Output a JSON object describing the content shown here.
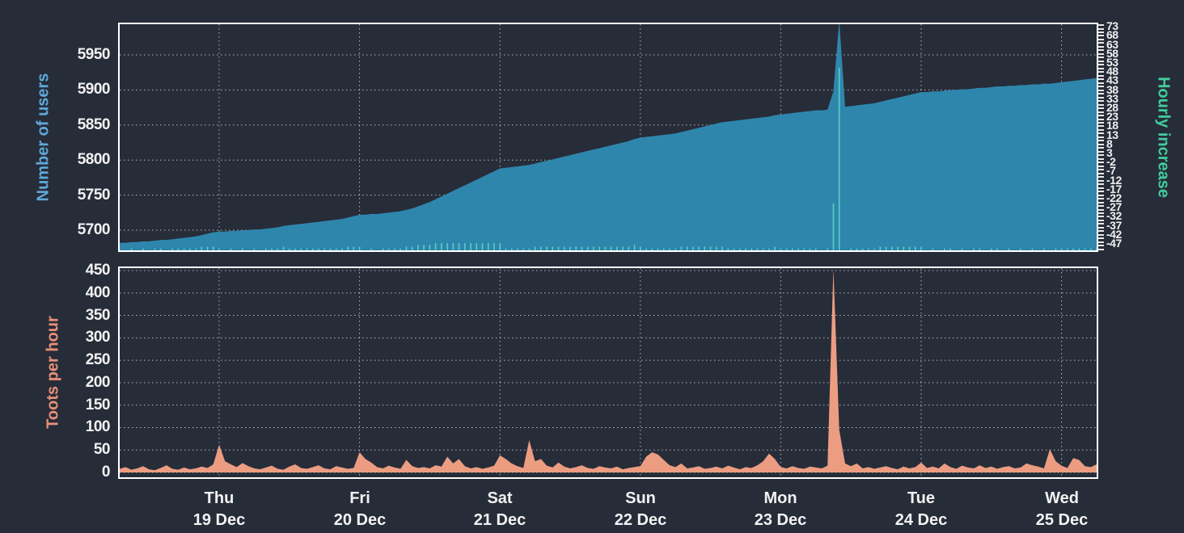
{
  "colors": {
    "background": "#272c39",
    "plot_border": "#ffffff",
    "grid": "rgba(255,255,255,0.65)",
    "users_fill": "#2f86ad",
    "hourly_line": "#5ecdc1",
    "toots_fill": "#ec9d81",
    "users_label": "#5fa8d8",
    "hourly_label": "#41ce9f",
    "toots_label": "#e89077",
    "tick_text": "#f2f2f2"
  },
  "x_axis": {
    "hours_total": 167,
    "day_ticks": [
      {
        "label": "Thu",
        "date": "19 Dec",
        "t": 17
      },
      {
        "label": "Fri",
        "date": "20 Dec",
        "t": 41
      },
      {
        "label": "Sat",
        "date": "21 Dec",
        "t": 65
      },
      {
        "label": "Sun",
        "date": "22 Dec",
        "t": 89
      },
      {
        "label": "Mon",
        "date": "23 Dec",
        "t": 113
      },
      {
        "label": "Tue",
        "date": "24 Dec",
        "t": 137
      },
      {
        "label": "Wed",
        "date": "25 Dec",
        "t": 161
      }
    ]
  },
  "chart_data": [
    {
      "type": "area",
      "name": "users-and-hourly-increase",
      "ylabel": "Number of users",
      "y2label": "Hourly increase",
      "yticks": [
        5950,
        5900,
        5850,
        5800,
        5750,
        5700
      ],
      "ylim": [
        5671,
        5994
      ],
      "y2lim": [
        -51,
        74
      ],
      "y2tick_labels": [
        73,
        68,
        63,
        58,
        53,
        48,
        43,
        38,
        33,
        28,
        23,
        18,
        13,
        8,
        3,
        -2,
        -7,
        -12,
        -17,
        -22,
        -27,
        -32,
        -37,
        -42,
        -47
      ],
      "y2tick_minor_step": 2,
      "grid": true,
      "series": [
        {
          "name": "Number of users",
          "values": [
            5682,
            5682,
            5683,
            5683,
            5684,
            5684,
            5685,
            5686,
            5686,
            5687,
            5688,
            5689,
            5690,
            5691,
            5693,
            5695,
            5697,
            5698,
            5698,
            5699,
            5699,
            5700,
            5700,
            5701,
            5701,
            5702,
            5703,
            5704,
            5706,
            5707,
            5708,
            5709,
            5710,
            5711,
            5712,
            5713,
            5714,
            5715,
            5716,
            5718,
            5720,
            5722,
            5722,
            5723,
            5723,
            5724,
            5725,
            5726,
            5727,
            5729,
            5731,
            5734,
            5737,
            5740,
            5744,
            5748,
            5752,
            5756,
            5760,
            5764,
            5768,
            5772,
            5776,
            5780,
            5784,
            5788,
            5789,
            5790,
            5791,
            5792,
            5793,
            5795,
            5797,
            5799,
            5801,
            5803,
            5805,
            5807,
            5809,
            5811,
            5813,
            5815,
            5817,
            5819,
            5821,
            5823,
            5825,
            5827,
            5830,
            5832,
            5833,
            5834,
            5835,
            5836,
            5837,
            5838,
            5840,
            5842,
            5844,
            5846,
            5848,
            5850,
            5852,
            5854,
            5855,
            5856,
            5857,
            5858,
            5859,
            5860,
            5861,
            5862,
            5864,
            5865,
            5866,
            5867,
            5868,
            5869,
            5870,
            5871,
            5871,
            5872,
            5898,
            5999,
            5876,
            5877,
            5878,
            5879,
            5880,
            5881,
            5883,
            5885,
            5887,
            5889,
            5891,
            5893,
            5895,
            5897,
            5897,
            5898,
            5898,
            5899,
            5900,
            5900,
            5901,
            5901,
            5902,
            5903,
            5903,
            5904,
            5905,
            5905,
            5906,
            5906,
            5907,
            5907,
            5908,
            5908,
            5909,
            5909,
            5910,
            5911,
            5912,
            5913,
            5914,
            5915,
            5916,
            5917
          ]
        },
        {
          "name": "Hourly increase",
          "derivation": "hourly difference of Number of users, negative values drawn as 0"
        }
      ]
    },
    {
      "type": "area",
      "name": "toots-per-hour",
      "ylabel": "Toots per hour",
      "yticks": [
        450,
        400,
        350,
        300,
        250,
        200,
        150,
        100,
        50,
        0
      ],
      "ylim": [
        -11,
        455
      ],
      "grid": true,
      "series": [
        {
          "name": "Toots per hour",
          "values": [
            8,
            12,
            6,
            9,
            14,
            7,
            5,
            10,
            16,
            8,
            6,
            11,
            7,
            9,
            13,
            10,
            18,
            62,
            25,
            18,
            12,
            21,
            14,
            9,
            7,
            11,
            15,
            8,
            6,
            13,
            18,
            10,
            8,
            12,
            16,
            9,
            7,
            14,
            11,
            8,
            10,
            45,
            30,
            22,
            12,
            9,
            15,
            11,
            8,
            28,
            14,
            10,
            12,
            9,
            16,
            13,
            35,
            20,
            30,
            14,
            9,
            12,
            8,
            11,
            15,
            38,
            30,
            20,
            14,
            10,
            72,
            25,
            30,
            15,
            11,
            22,
            13,
            9,
            12,
            16,
            10,
            8,
            14,
            11,
            9,
            13,
            7,
            10,
            12,
            14,
            35,
            45,
            40,
            28,
            16,
            12,
            20,
            9,
            11,
            14,
            8,
            10,
            13,
            9,
            15,
            11,
            7,
            12,
            10,
            16,
            25,
            42,
            30,
            12,
            9,
            14,
            10,
            8,
            13,
            11,
            9,
            15,
            455,
            95,
            20,
            14,
            20,
            9,
            12,
            8,
            11,
            14,
            10,
            7,
            13,
            9,
            12,
            22,
            10,
            13,
            9,
            20,
            12,
            8,
            15,
            11,
            9,
            16,
            10,
            13,
            8,
            12,
            14,
            9,
            11,
            20,
            16,
            13,
            9,
            52,
            25,
            15,
            10,
            32,
            28,
            14,
            12,
            18
          ]
        }
      ]
    }
  ]
}
